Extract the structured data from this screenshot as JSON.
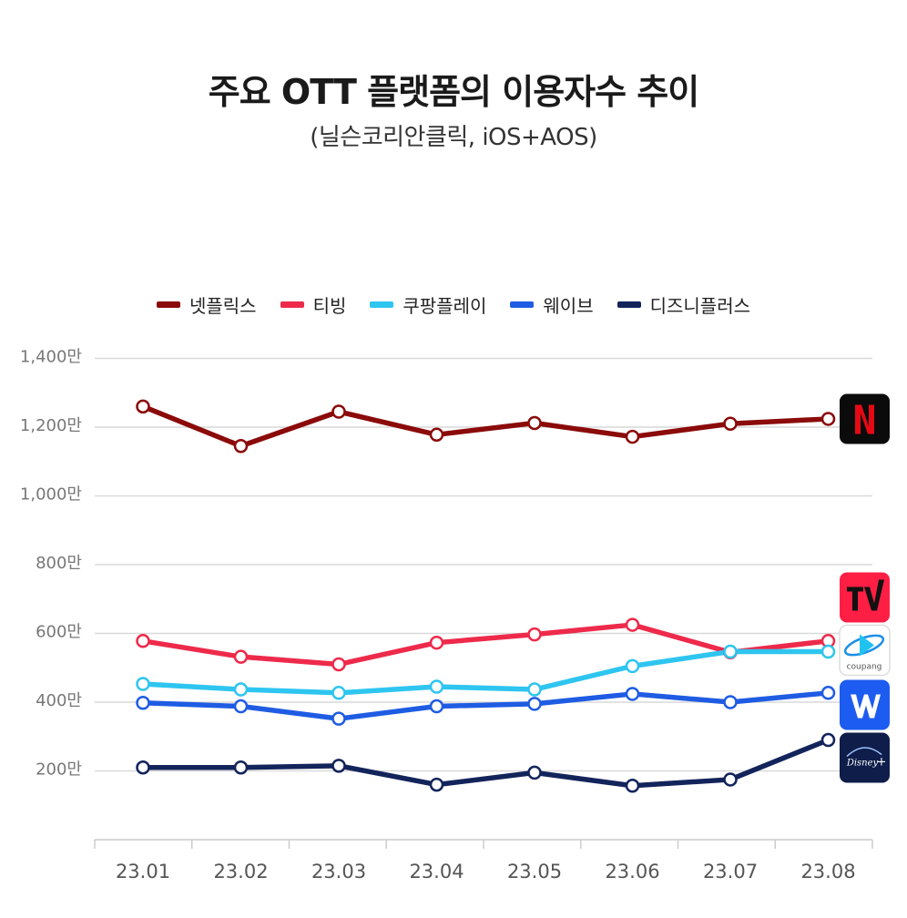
{
  "title": "주요 OTT 플랫폼의 이용자수 추이",
  "subtitle": "(닐슨코리안클릭, iOS+AOS)",
  "chart_data": {
    "type": "line",
    "x": [
      "23.01",
      "23.02",
      "23.03",
      "23.04",
      "23.05",
      "23.06",
      "23.07",
      "23.08"
    ],
    "ylim": [
      0,
      1400
    ],
    "yticks": [
      200,
      400,
      600,
      800,
      1000,
      1200,
      1400
    ],
    "ytick_labels": [
      "200만",
      "400만",
      "600만",
      "800만",
      "1,000만",
      "1,200만",
      "1,400만"
    ],
    "grid": true,
    "legend_position": "top",
    "series": [
      {
        "name": "넷플릭스",
        "color": "#8b0a0a",
        "icon": "netflix-logo-icon",
        "values": [
          1260,
          1145,
          1245,
          1178,
          1212,
          1172,
          1210,
          1224
        ]
      },
      {
        "name": "티빙",
        "color": "#ee2a4b",
        "icon": "tving-logo-icon",
        "values": [
          578,
          532,
          510,
          573,
          597,
          625,
          545,
          578
        ]
      },
      {
        "name": "쿠팡플레이",
        "color": "#2ec5f0",
        "icon": "coupang-play-logo-icon",
        "values": [
          453,
          437,
          427,
          445,
          437,
          505,
          547,
          547
        ]
      },
      {
        "name": "웨이브",
        "color": "#1f5ce3",
        "icon": "wavve-logo-icon",
        "values": [
          398,
          388,
          352,
          388,
          395,
          424,
          400,
          427
        ]
      },
      {
        "name": "디즈니플러스",
        "color": "#13245b",
        "icon": "disney-plus-logo-icon",
        "values": [
          210,
          210,
          215,
          160,
          195,
          157,
          175,
          290
        ]
      }
    ]
  }
}
